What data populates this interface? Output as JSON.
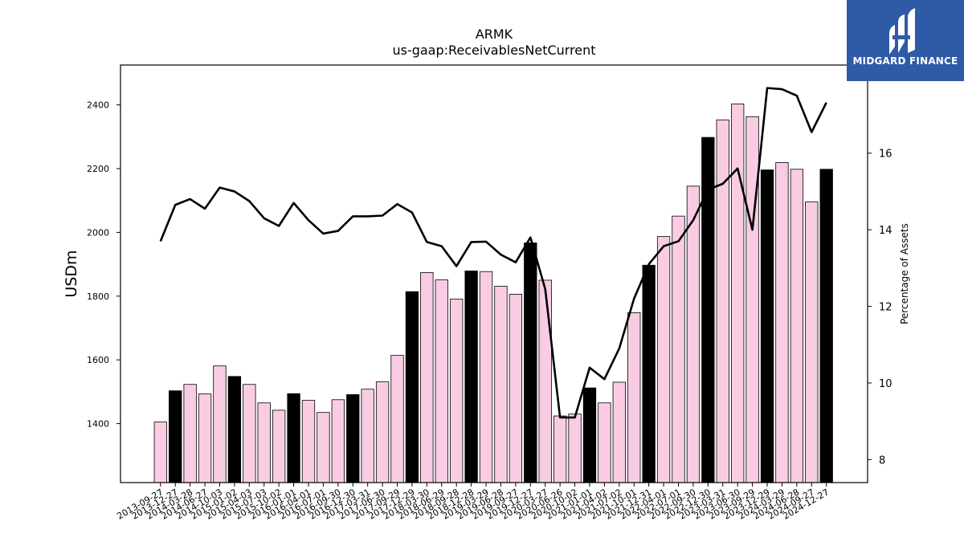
{
  "chart_data": {
    "type": "bar",
    "title": "ARMK",
    "subtitle": "us-gaap:ReceivablesNetCurrent",
    "ylabel": "USDm",
    "y2label": "Percentage of Assets",
    "ylim": [
      1215,
      2525
    ],
    "y2lim": [
      7.4,
      18.3
    ],
    "yticks": [
      1400,
      1600,
      1800,
      2000,
      2200,
      2400
    ],
    "y2ticks": [
      8,
      10,
      12,
      14,
      16
    ],
    "categories": [
      "2013-09-27",
      "2013-12-27",
      "2014-03-28",
      "2014-06-27",
      "2014-10-03",
      "2015-01-02",
      "2015-04-03",
      "2015-07-03",
      "2015-10-02",
      "2016-01-01",
      "2016-04-01",
      "2016-07-01",
      "2016-09-30",
      "2016-12-30",
      "2017-03-31",
      "2017-06-30",
      "2017-09-29",
      "2017-12-29",
      "2018-03-30",
      "2018-06-29",
      "2018-09-28",
      "2018-12-28",
      "2019-03-29",
      "2019-06-28",
      "2019-09-27",
      "2019-12-27",
      "2020-03-27",
      "2020-06-26",
      "2020-10-02",
      "2021-01-01",
      "2021-04-02",
      "2021-07-02",
      "2021-10-01",
      "2021-12-31",
      "2022-04-01",
      "2022-07-01",
      "2022-09-30",
      "2022-12-30",
      "2023-03-31",
      "2023-06-30",
      "2023-09-29",
      "2023-12-29",
      "2024-03-29",
      "2024-06-28",
      "2024-09-27",
      "2024-12-27"
    ],
    "series": [
      {
        "type": "bar",
        "values": [
          1405,
          1503,
          1523,
          1493,
          1581,
          1548,
          1523,
          1465,
          1442,
          1494,
          1473,
          1435,
          1475,
          1491,
          1508,
          1531,
          1614,
          1814,
          1874,
          1851,
          1791,
          1879,
          1877,
          1831,
          1806,
          1967,
          1850,
          1424,
          1430,
          1512,
          1465,
          1530,
          1748,
          1897,
          1987,
          2051,
          2145,
          2298,
          2353,
          2403,
          2363,
          2196,
          2219,
          2198,
          2096,
          2198
        ],
        "fiscal_year_end": [
          false,
          true,
          false,
          false,
          false,
          true,
          false,
          false,
          false,
          true,
          false,
          false,
          false,
          true,
          false,
          false,
          false,
          true,
          false,
          false,
          false,
          true,
          false,
          false,
          false,
          true,
          false,
          false,
          false,
          true,
          false,
          false,
          false,
          true,
          false,
          false,
          false,
          true,
          false,
          false,
          false,
          true,
          false,
          false,
          false,
          true
        ]
      },
      {
        "type": "line",
        "axis": "right",
        "values": [
          13.7,
          14.65,
          14.8,
          14.55,
          15.1,
          15.0,
          14.75,
          14.3,
          14.1,
          14.7,
          14.25,
          13.9,
          13.97,
          14.35,
          14.35,
          14.37,
          14.67,
          14.45,
          13.68,
          13.57,
          13.05,
          13.68,
          13.69,
          13.35,
          13.15,
          13.8,
          12.45,
          9.1,
          9.1,
          10.4,
          10.1,
          10.9,
          12.2,
          13.1,
          13.57,
          13.7,
          14.25,
          15.05,
          15.2,
          15.6,
          14.0,
          17.7,
          17.67,
          17.5,
          16.55,
          17.32
        ]
      }
    ],
    "colors": {
      "bar_fill": "#f9cce4",
      "bar_fill_highlight": "#000000",
      "bar_edge": "#000000",
      "line": "#000000"
    }
  },
  "logo": {
    "text": "MIDGARD FINANCE",
    "bg": "#2f5aa8"
  }
}
